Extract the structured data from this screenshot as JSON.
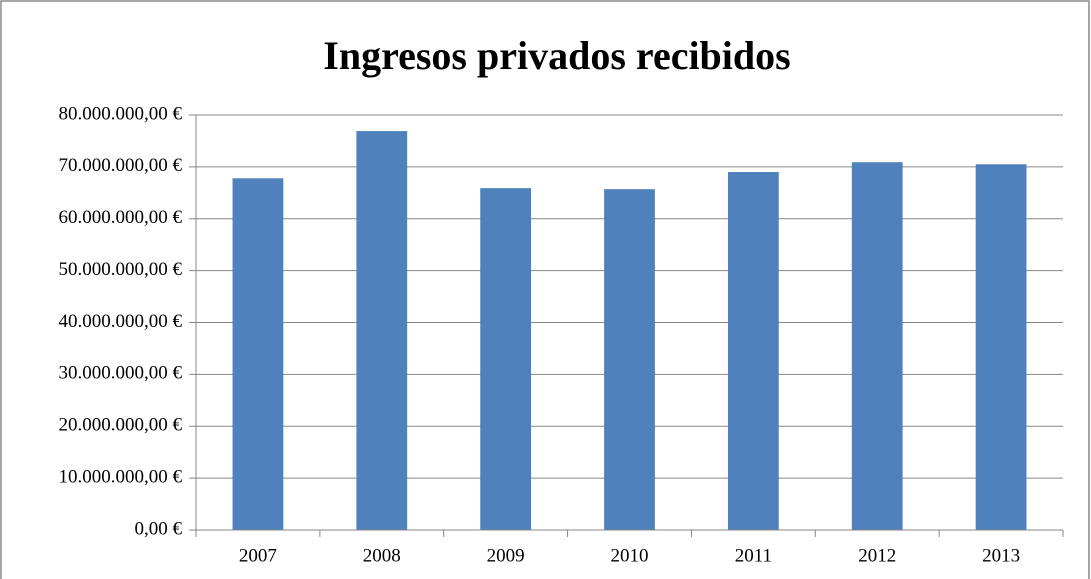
{
  "chart_data": {
    "type": "bar",
    "title": "Ingresos privados recibidos",
    "categories": [
      "2007",
      "2008",
      "2009",
      "2010",
      "2011",
      "2012",
      "2013"
    ],
    "values": [
      67800000,
      76900000,
      65900000,
      65700000,
      69000000,
      70900000,
      70500000
    ],
    "color": "#4f81bd",
    "ylim": [
      0,
      80000000
    ],
    "yticks": [
      {
        "value": 0,
        "label": "0,00 €"
      },
      {
        "value": 10000000,
        "label": "10.000.000,00 €"
      },
      {
        "value": 20000000,
        "label": "20.000.000,00 €"
      },
      {
        "value": 30000000,
        "label": "30.000.000,00 €"
      },
      {
        "value": 40000000,
        "label": "40.000.000,00 €"
      },
      {
        "value": 50000000,
        "label": "50.000.000,00 €"
      },
      {
        "value": 60000000,
        "label": "60.000.000,00 €"
      },
      {
        "value": 70000000,
        "label": "70.000.000,00 €"
      },
      {
        "value": 80000000,
        "label": "80.000.000,00 €"
      }
    ],
    "grid": true
  }
}
